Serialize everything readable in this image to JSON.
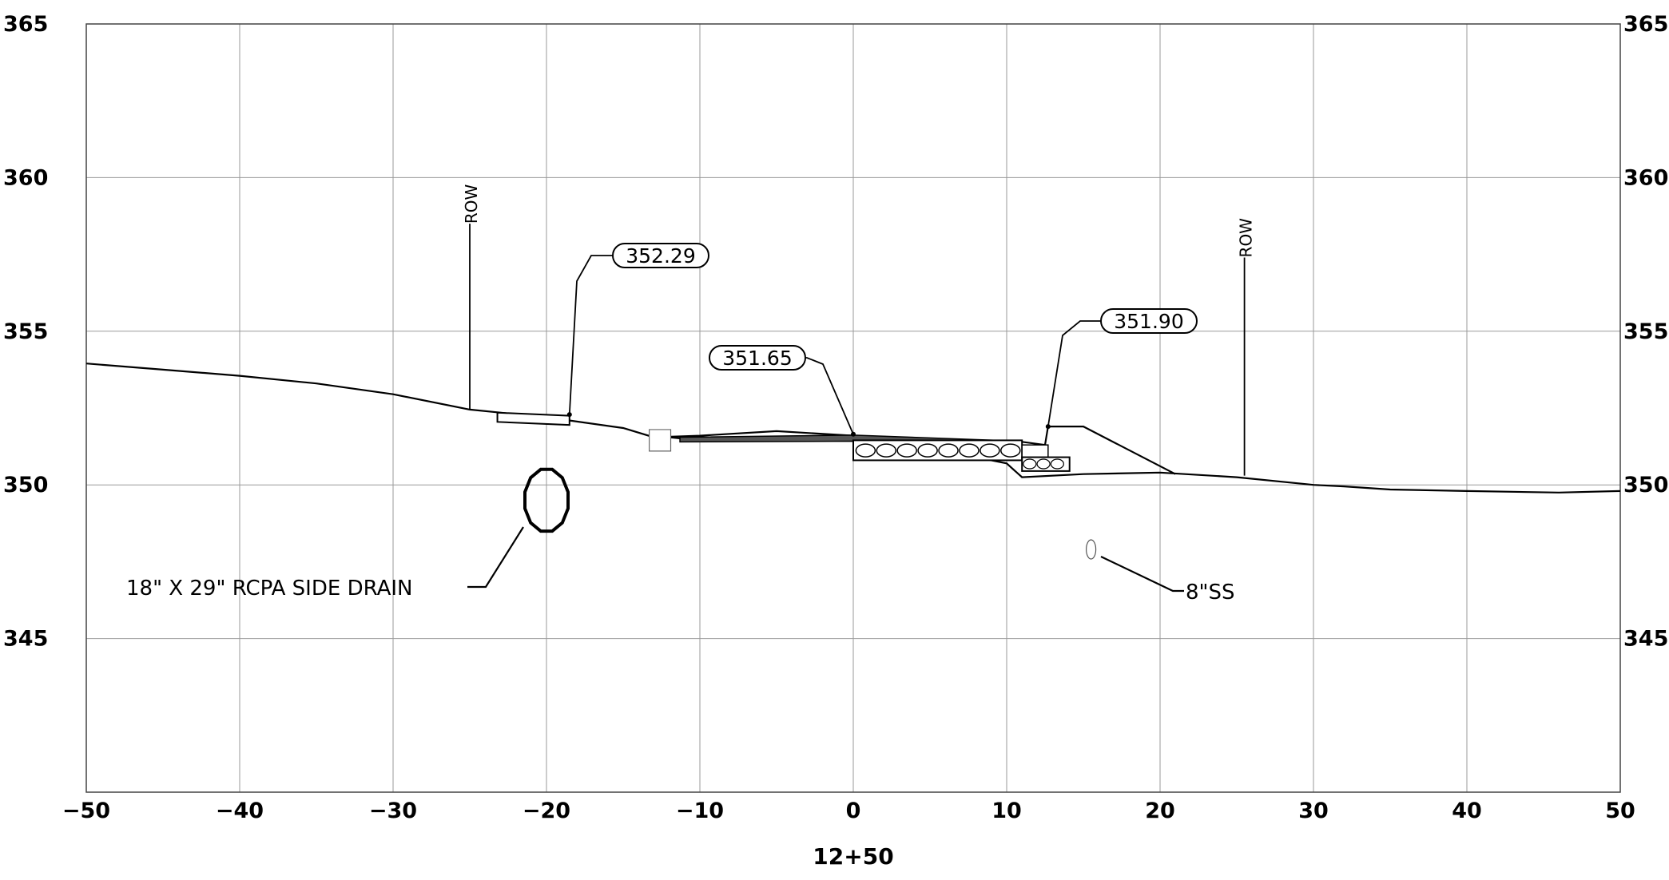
{
  "chart_data": {
    "type": "cross-section",
    "station_label": "12+50",
    "x_range": [
      -50,
      50
    ],
    "y_range": [
      340,
      365
    ],
    "x_ticks": [
      -50,
      -40,
      -30,
      -20,
      -10,
      0,
      10,
      20,
      30,
      40,
      50
    ],
    "x_tick_labels": [
      "−50",
      "−40",
      "−30",
      "−20",
      "−10",
      "0",
      "10",
      "20",
      "30",
      "40",
      "50"
    ],
    "y_ticks": [
      345,
      350,
      355,
      360,
      365
    ],
    "y_tick_labels": [
      "345",
      "350",
      "355",
      "360",
      "365"
    ],
    "grid": true,
    "existing_ground": [
      [
        -50,
        353.95
      ],
      [
        -45,
        353.75
      ],
      [
        -40,
        353.55
      ],
      [
        -35,
        353.3
      ],
      [
        -30,
        352.95
      ],
      [
        -25,
        352.45
      ],
      [
        -20,
        352.2
      ],
      [
        -15,
        351.85
      ],
      [
        -13,
        351.55
      ],
      [
        -10,
        351.6
      ],
      [
        -5,
        351.75
      ],
      [
        0,
        351.6
      ],
      [
        5,
        351.2
      ],
      [
        10,
        350.7
      ],
      [
        11,
        350.25
      ],
      [
        15,
        350.35
      ],
      [
        20,
        350.4
      ],
      [
        25,
        350.25
      ],
      [
        30,
        350.0
      ],
      [
        32,
        349.95
      ],
      [
        35,
        349.85
      ],
      [
        40,
        349.8
      ],
      [
        46,
        349.75
      ],
      [
        50,
        349.8
      ]
    ],
    "proposed_section": [
      [
        -13,
        351.6
      ],
      [
        -11,
        351.5
      ],
      [
        0,
        351.6
      ],
      [
        11,
        351.4
      ],
      [
        12.5,
        351.3
      ],
      [
        12.7,
        351.9
      ],
      [
        15,
        351.9
      ],
      [
        21,
        350.35
      ]
    ],
    "row_markers": [
      {
        "x": -25,
        "label": "ROW"
      },
      {
        "x": 25.5,
        "label": "ROW"
      }
    ],
    "elevation_callouts": [
      {
        "label": "352.29",
        "x": -18.5,
        "y": 352.29
      },
      {
        "label": "351.65",
        "x": 0,
        "y": 351.65
      },
      {
        "label": "351.90",
        "x": 12.7,
        "y": 351.9
      }
    ],
    "annotations": [
      {
        "text": "18\" X 29\" RCPA SIDE DRAIN",
        "x": -20,
        "y": 349.5
      },
      {
        "text": "8\"SS",
        "x": 15.5,
        "y": 347.9
      }
    ]
  }
}
